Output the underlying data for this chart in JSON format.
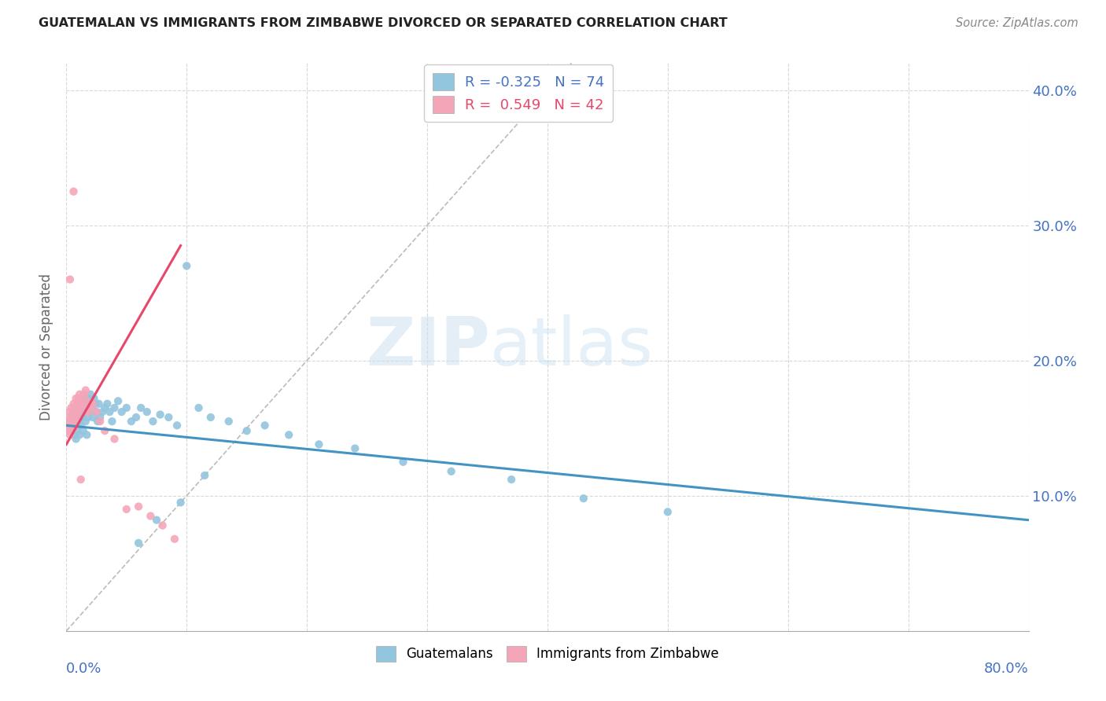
{
  "title": "GUATEMALAN VS IMMIGRANTS FROM ZIMBABWE DIVORCED OR SEPARATED CORRELATION CHART",
  "source": "Source: ZipAtlas.com",
  "ylabel": "Divorced or Separated",
  "color_blue": "#92c5de",
  "color_pink": "#f4a6b8",
  "color_blue_line": "#4393c3",
  "color_pink_line": "#e8476a",
  "color_gray_line": "#bbbbbb",
  "watermark_zip": "ZIP",
  "watermark_atlas": "atlas",
  "xmin": 0.0,
  "xmax": 0.8,
  "ymin": 0.0,
  "ymax": 0.42,
  "legend_entry1_r": "R = -0.325",
  "legend_entry1_n": "N = 74",
  "legend_entry2_r": "R =  0.549",
  "legend_entry2_n": "N = 42",
  "blue_line_x": [
    0.0,
    0.8
  ],
  "blue_line_y": [
    0.152,
    0.082
  ],
  "pink_line_x": [
    0.0,
    0.095
  ],
  "pink_line_y": [
    0.138,
    0.285
  ],
  "gray_line_x": [
    0.0,
    0.42
  ],
  "gray_line_y": [
    0.0,
    0.42
  ],
  "scatter_blue_x": [
    0.002,
    0.003,
    0.004,
    0.005,
    0.006,
    0.006,
    0.007,
    0.007,
    0.008,
    0.008,
    0.009,
    0.009,
    0.01,
    0.01,
    0.011,
    0.011,
    0.012,
    0.012,
    0.013,
    0.013,
    0.014,
    0.014,
    0.015,
    0.015,
    0.016,
    0.016,
    0.017,
    0.018,
    0.018,
    0.019,
    0.02,
    0.021,
    0.022,
    0.023,
    0.024,
    0.025,
    0.026,
    0.027,
    0.028,
    0.03,
    0.032,
    0.034,
    0.036,
    0.038,
    0.04,
    0.043,
    0.046,
    0.05,
    0.054,
    0.058,
    0.062,
    0.067,
    0.072,
    0.078,
    0.085,
    0.092,
    0.1,
    0.11,
    0.12,
    0.135,
    0.15,
    0.165,
    0.185,
    0.21,
    0.24,
    0.28,
    0.32,
    0.37,
    0.43,
    0.5,
    0.115,
    0.095,
    0.075,
    0.06
  ],
  "scatter_blue_y": [
    0.155,
    0.15,
    0.148,
    0.16,
    0.145,
    0.155,
    0.152,
    0.158,
    0.142,
    0.162,
    0.148,
    0.165,
    0.155,
    0.168,
    0.145,
    0.16,
    0.152,
    0.17,
    0.158,
    0.165,
    0.172,
    0.148,
    0.162,
    0.175,
    0.155,
    0.168,
    0.145,
    0.158,
    0.172,
    0.162,
    0.175,
    0.165,
    0.158,
    0.172,
    0.168,
    0.162,
    0.155,
    0.168,
    0.158,
    0.162,
    0.165,
    0.168,
    0.162,
    0.155,
    0.165,
    0.17,
    0.162,
    0.165,
    0.155,
    0.158,
    0.165,
    0.162,
    0.155,
    0.16,
    0.158,
    0.152,
    0.27,
    0.165,
    0.158,
    0.155,
    0.148,
    0.152,
    0.145,
    0.138,
    0.135,
    0.125,
    0.118,
    0.112,
    0.098,
    0.088,
    0.115,
    0.095,
    0.082,
    0.065
  ],
  "scatter_pink_x": [
    0.001,
    0.001,
    0.002,
    0.002,
    0.003,
    0.003,
    0.004,
    0.004,
    0.005,
    0.005,
    0.006,
    0.006,
    0.007,
    0.007,
    0.008,
    0.008,
    0.009,
    0.009,
    0.01,
    0.01,
    0.011,
    0.012,
    0.013,
    0.014,
    0.015,
    0.016,
    0.017,
    0.018,
    0.02,
    0.022,
    0.025,
    0.028,
    0.032,
    0.04,
    0.05,
    0.06,
    0.07,
    0.08,
    0.09,
    0.003,
    0.006,
    0.012
  ],
  "scatter_pink_y": [
    0.155,
    0.148,
    0.162,
    0.152,
    0.145,
    0.158,
    0.15,
    0.165,
    0.155,
    0.158,
    0.168,
    0.15,
    0.165,
    0.155,
    0.172,
    0.162,
    0.168,
    0.158,
    0.172,
    0.162,
    0.175,
    0.17,
    0.168,
    0.165,
    0.175,
    0.178,
    0.17,
    0.162,
    0.165,
    0.168,
    0.162,
    0.155,
    0.148,
    0.142,
    0.09,
    0.092,
    0.085,
    0.078,
    0.068,
    0.26,
    0.325,
    0.112
  ]
}
